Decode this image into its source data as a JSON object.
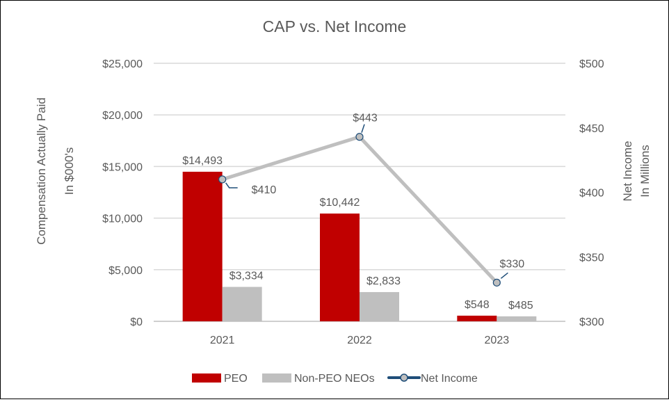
{
  "chart_data": {
    "type": "bar+line",
    "title": "CAP vs. Net Income",
    "categories": [
      "2021",
      "2022",
      "2023"
    ],
    "ylabel_left": [
      "Compensation Actually Paid",
      "In $000's"
    ],
    "ylabel_right": [
      "Net Income",
      "In Millions"
    ],
    "ylim_left": [
      0,
      25000
    ],
    "ylim_right": [
      300,
      500
    ],
    "yticks_left": [
      "$0",
      "$5,000",
      "$10,000",
      "$15,000",
      "$20,000",
      "$25,000"
    ],
    "yticks_right": [
      "$300",
      "$350",
      "$400",
      "$450",
      "$500"
    ],
    "grid": true,
    "legend_placement": "bottom",
    "series": [
      {
        "name": "PEO",
        "type": "bar",
        "axis": "left",
        "color": "#C00000",
        "values": [
          14493,
          10442,
          548
        ],
        "labels": [
          "$14,493",
          "$10,442",
          "$548"
        ]
      },
      {
        "name": "Non-PEO NEOs",
        "type": "bar",
        "axis": "left",
        "color": "#BFBFBF",
        "values": [
          3334,
          2833,
          485
        ],
        "labels": [
          "$3,334",
          "$2,833",
          "$485"
        ]
      },
      {
        "name": "Net Income",
        "type": "line",
        "axis": "right",
        "color": "#BFBFBF",
        "marker_color": "#1F4E79",
        "values": [
          410,
          443,
          330
        ],
        "labels": [
          "$410",
          "$443",
          "$330"
        ]
      }
    ]
  }
}
